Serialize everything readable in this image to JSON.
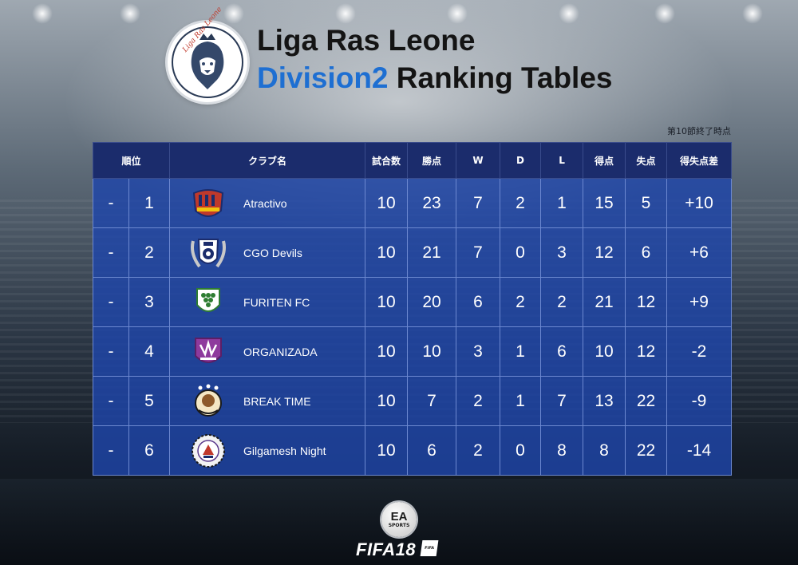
{
  "header": {
    "league_name": "Liga Ras Leone",
    "division_accent": "Division2",
    "division_rest": " Ranking Tables",
    "crest_text": "Liga Ras Leone",
    "as_of": "第10節終了時点"
  },
  "colors": {
    "accent": "#1e6fd2",
    "header_row": "#1b2c6c",
    "body_row": "#1e46aa"
  },
  "table": {
    "columns": [
      "順位",
      "クラブ名",
      "試合数",
      "勝点",
      "W",
      "D",
      "L",
      "得点",
      "失点",
      "得失点差"
    ],
    "rows": [
      {
        "move": "-",
        "rank": "1",
        "club": "Atractivo",
        "logo": "atractivo-crest-icon",
        "played": "10",
        "points": "23",
        "w": "7",
        "d": "2",
        "l": "1",
        "gf": "15",
        "ga": "5",
        "gd": "+10"
      },
      {
        "move": "-",
        "rank": "2",
        "club": "CGO Devils",
        "logo": "cgo-devils-crest-icon",
        "played": "10",
        "points": "21",
        "w": "7",
        "d": "0",
        "l": "3",
        "gf": "12",
        "ga": "6",
        "gd": "+6"
      },
      {
        "move": "-",
        "rank": "3",
        "club": "FURITEN FC",
        "logo": "furiten-crest-icon",
        "played": "10",
        "points": "20",
        "w": "6",
        "d": "2",
        "l": "2",
        "gf": "21",
        "ga": "12",
        "gd": "+9"
      },
      {
        "move": "-",
        "rank": "4",
        "club": "ORGANIZADA",
        "logo": "organizada-crest-icon",
        "played": "10",
        "points": "10",
        "w": "3",
        "d": "1",
        "l": "6",
        "gf": "10",
        "ga": "12",
        "gd": "-2"
      },
      {
        "move": "-",
        "rank": "5",
        "club": "BREAK TIME",
        "logo": "break-time-crest-icon",
        "played": "10",
        "points": "7",
        "w": "2",
        "d": "1",
        "l": "7",
        "gf": "13",
        "ga": "22",
        "gd": "-9"
      },
      {
        "move": "-",
        "rank": "6",
        "club": "Gilgamesh Night",
        "logo": "gilgamesh-night-crest-icon",
        "played": "10",
        "points": "6",
        "w": "2",
        "d": "0",
        "l": "8",
        "gf": "8",
        "ga": "22",
        "gd": "-14"
      }
    ]
  },
  "footer": {
    "ea_main": "EA",
    "ea_sub": "SPORTS",
    "fifa": "FIFA18",
    "fifa_badge": "FIFA"
  }
}
